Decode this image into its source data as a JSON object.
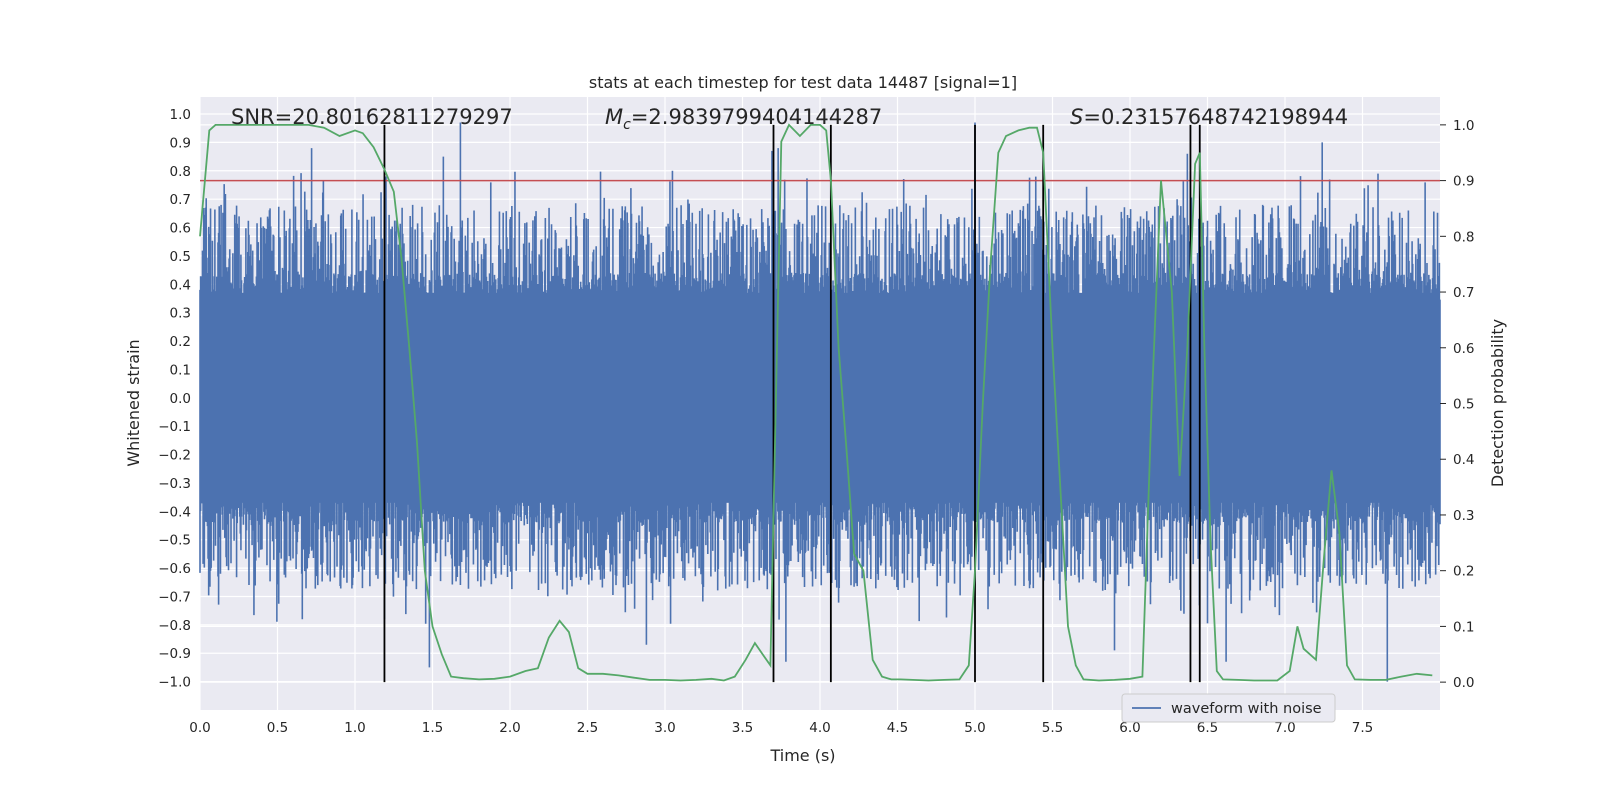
{
  "chart_data": {
    "type": "line",
    "title": "stats at each timestep for test data 14487 [signal=1]",
    "xlabel": "Time (s)",
    "ylabel_left": "Whitened strain",
    "ylabel_right": "Detection probability",
    "xlim": [
      0.0,
      8.0
    ],
    "ylim_left": [
      -1.1,
      1.06
    ],
    "ylim_right": [
      -0.05,
      1.05
    ],
    "x_ticks": [
      "0.0",
      "0.5",
      "1.0",
      "1.5",
      "2.0",
      "2.5",
      "3.0",
      "3.5",
      "4.0",
      "4.5",
      "5.0",
      "5.5",
      "6.0",
      "6.5",
      "7.0",
      "7.5"
    ],
    "y_left_ticks": [
      "1.0",
      "0.9",
      "0.8",
      "0.7",
      "0.6",
      "0.5",
      "0.4",
      "0.3",
      "0.2",
      "0.1",
      "0.0",
      "−0.1",
      "−0.2",
      "−0.3",
      "−0.4",
      "−0.5",
      "−0.6",
      "−0.7",
      "−0.8",
      "−0.9",
      "−1.0"
    ],
    "y_right_ticks": [
      "1.0",
      "0.9",
      "0.8",
      "0.7",
      "0.6",
      "0.5",
      "0.4",
      "0.3",
      "0.2",
      "0.1",
      "0.0"
    ],
    "annotations": {
      "snr": "SNR=20.80162811279297",
      "mc_symbol": "M",
      "mc_sub": "c",
      "mc_value": "=2.9839799404144287",
      "s_symbol": "S",
      "s_value": "=0.23157648742198944"
    },
    "threshold": {
      "value": 0.9,
      "color": "#c44e52"
    },
    "vertical_lines": [
      1.19,
      3.7,
      4.07,
      5.0,
      5.44,
      6.39,
      6.45
    ],
    "series": [
      {
        "name": "waveform with noise",
        "color": "#4c72b0",
        "axis": "left",
        "description": "whitened strain noise, core envelope about ±0.4 with spikes to about ±1.0",
        "spikes": [
          {
            "x": 0.72,
            "y": 0.88
          },
          {
            "x": 1.68,
            "y": 0.97
          },
          {
            "x": 1.57,
            "y": 0.85
          },
          {
            "x": 3.69,
            "y": 0.87
          },
          {
            "x": 3.73,
            "y": 0.88
          },
          {
            "x": 5.0,
            "y": 0.97
          },
          {
            "x": 6.37,
            "y": 0.86
          },
          {
            "x": 7.24,
            "y": 0.9
          },
          {
            "x": 7.6,
            "y": 0.79
          },
          {
            "x": 1.19,
            "y": -0.78
          },
          {
            "x": 1.48,
            "y": -0.95
          },
          {
            "x": 0.66,
            "y": -0.78
          },
          {
            "x": 2.88,
            "y": -0.87
          },
          {
            "x": 3.78,
            "y": -0.93
          },
          {
            "x": 5.9,
            "y": -0.89
          },
          {
            "x": 6.62,
            "y": -0.93
          },
          {
            "x": 7.66,
            "y": -1.0
          }
        ]
      },
      {
        "name": "detection probability",
        "color": "#55a868",
        "axis": "right",
        "x": [
          0.0,
          0.06,
          0.1,
          0.2,
          0.3,
          0.4,
          0.5,
          0.6,
          0.7,
          0.8,
          0.9,
          1.0,
          1.05,
          1.12,
          1.19,
          1.25,
          1.3,
          1.35,
          1.4,
          1.45,
          1.5,
          1.56,
          1.62,
          1.7,
          1.8,
          1.9,
          2.0,
          2.1,
          2.18,
          2.25,
          2.32,
          2.38,
          2.44,
          2.5,
          2.6,
          2.7,
          2.8,
          2.9,
          3.0,
          3.1,
          3.2,
          3.3,
          3.38,
          3.45,
          3.52,
          3.58,
          3.63,
          3.68,
          3.7,
          3.75,
          3.8,
          3.87,
          3.94,
          4.0,
          4.04,
          4.07,
          4.12,
          4.17,
          4.22,
          4.28,
          4.34,
          4.4,
          4.46,
          4.52,
          4.6,
          4.7,
          4.8,
          4.9,
          4.96,
          5.0,
          5.05,
          5.1,
          5.15,
          5.2,
          5.28,
          5.35,
          5.4,
          5.44,
          5.5,
          5.55,
          5.6,
          5.65,
          5.7,
          5.8,
          5.9,
          6.0,
          6.08,
          6.14,
          6.2,
          6.27,
          6.32,
          6.37,
          6.42,
          6.45,
          6.48,
          6.52,
          6.56,
          6.6,
          6.7,
          6.8,
          6.95,
          7.03,
          7.08,
          7.12,
          7.2,
          7.25,
          7.3,
          7.35,
          7.4,
          7.45,
          7.55,
          7.65,
          7.75,
          7.85,
          7.95
        ],
        "y": [
          0.8,
          0.99,
          1.0,
          1.0,
          1.0,
          1.0,
          1.0,
          1.0,
          1.0,
          0.995,
          0.98,
          0.99,
          0.985,
          0.96,
          0.92,
          0.88,
          0.76,
          0.6,
          0.43,
          0.2,
          0.1,
          0.05,
          0.01,
          0.007,
          0.005,
          0.006,
          0.01,
          0.02,
          0.025,
          0.08,
          0.11,
          0.09,
          0.025,
          0.015,
          0.015,
          0.012,
          0.008,
          0.004,
          0.004,
          0.003,
          0.004,
          0.006,
          0.003,
          0.01,
          0.04,
          0.07,
          0.05,
          0.03,
          0.3,
          0.97,
          1.0,
          0.98,
          1.0,
          1.0,
          0.99,
          0.9,
          0.6,
          0.42,
          0.23,
          0.2,
          0.04,
          0.01,
          0.005,
          0.005,
          0.004,
          0.003,
          0.004,
          0.005,
          0.03,
          0.2,
          0.5,
          0.75,
          0.95,
          0.98,
          0.99,
          0.995,
          0.995,
          0.95,
          0.6,
          0.35,
          0.1,
          0.03,
          0.005,
          0.003,
          0.004,
          0.006,
          0.01,
          0.5,
          0.9,
          0.7,
          0.37,
          0.6,
          0.93,
          0.95,
          0.6,
          0.25,
          0.02,
          0.005,
          0.004,
          0.003,
          0.003,
          0.02,
          0.1,
          0.06,
          0.04,
          0.22,
          0.38,
          0.27,
          0.03,
          0.005,
          0.004,
          0.004,
          0.01,
          0.015,
          0.012
        ]
      }
    ],
    "legend": {
      "label": "waveform with noise",
      "position": "lower right"
    }
  }
}
